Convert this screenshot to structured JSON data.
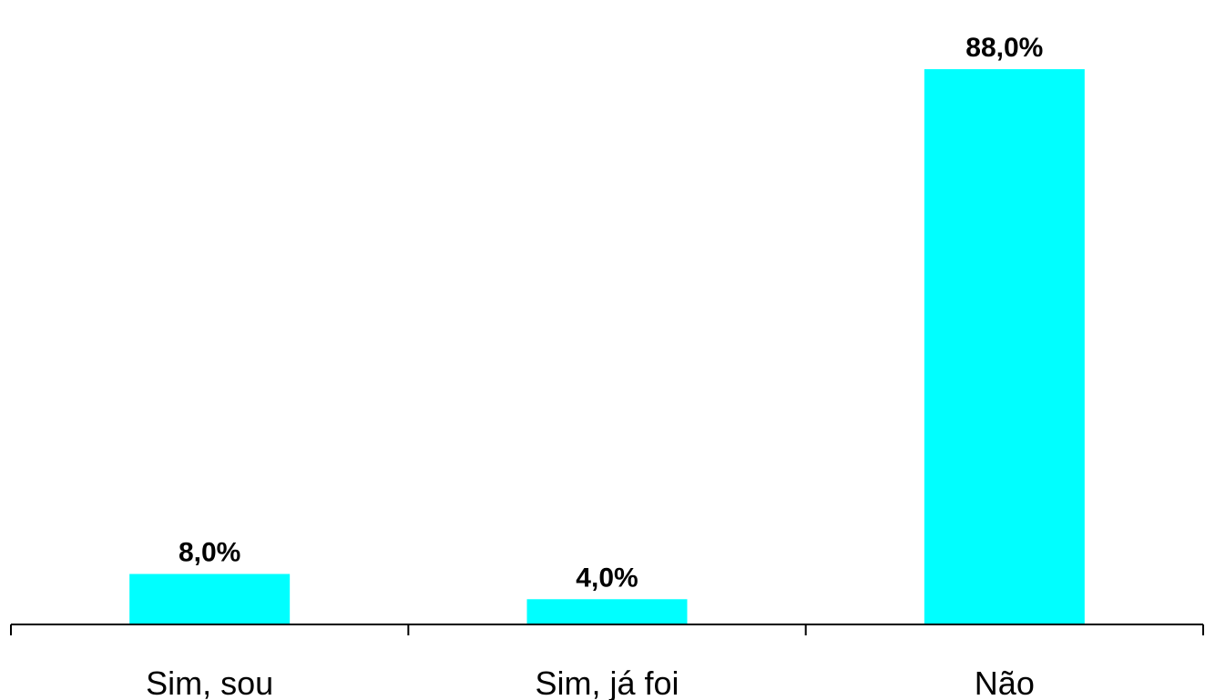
{
  "chart_data": {
    "type": "bar",
    "categories": [
      "Sim, sou",
      "Sim, já foi",
      "Não"
    ],
    "values": [
      8.0,
      4.0,
      88.0
    ],
    "value_labels": [
      "8,0%",
      "4,0%",
      "88,0%"
    ],
    "ylim": [
      0,
      88
    ],
    "grid": false,
    "legend": "none",
    "bar_color": "#00FFFF",
    "axis_color": "#000000"
  }
}
